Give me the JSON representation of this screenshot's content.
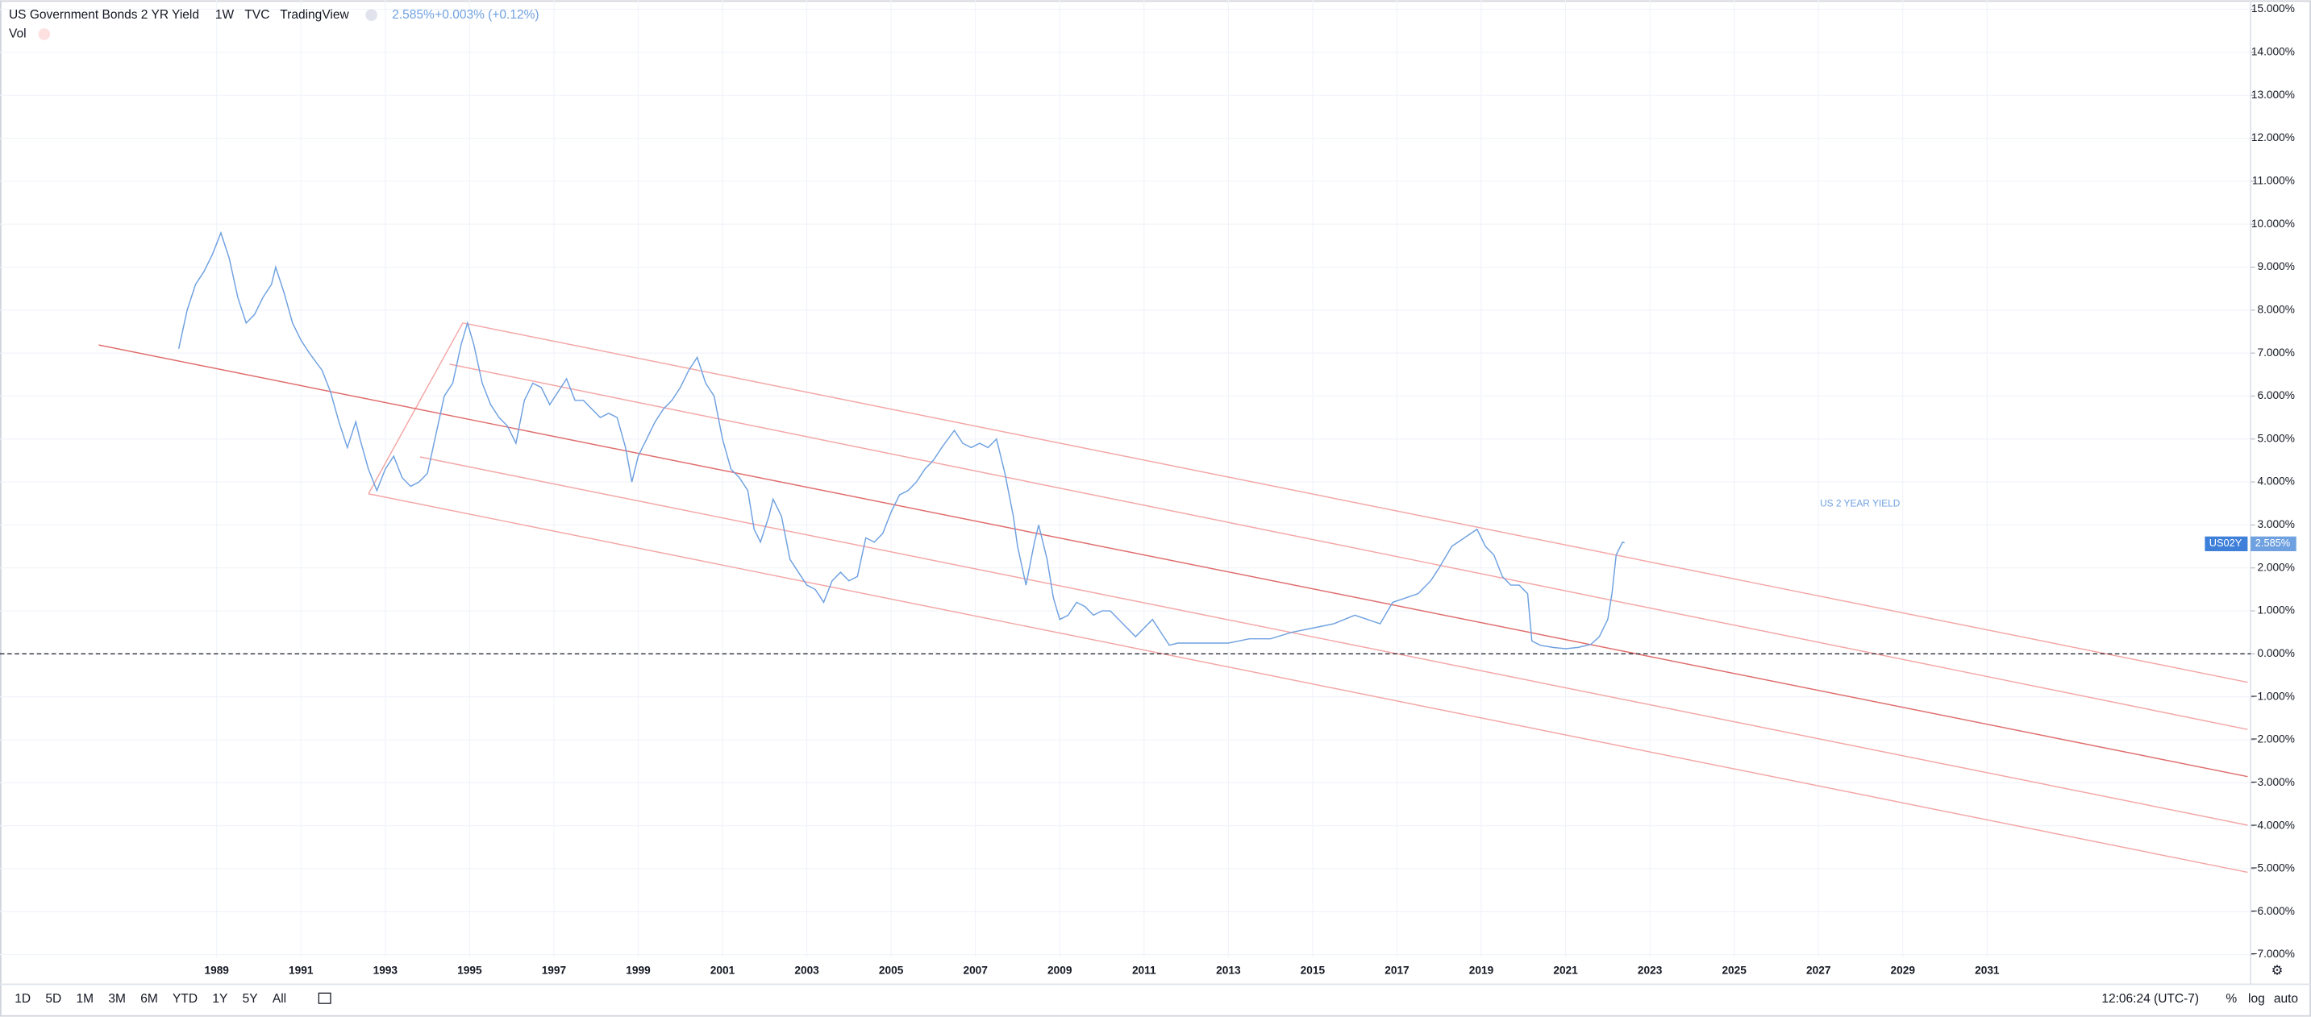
{
  "header": {
    "title": "US Government Bonds 2 YR Yield",
    "interval": "1W",
    "exchange": "TVC",
    "source": "TradingView",
    "price": "2.585%",
    "change": "+0.003% (+0.12%)",
    "volume": "Vol"
  },
  "price_tag": {
    "symbol": "US02Y",
    "value": "2.585%"
  },
  "toolbar": {
    "ranges": [
      "1D",
      "5D",
      "1M",
      "3M",
      "6M",
      "YTD",
      "1Y",
      "5Y",
      "All"
    ],
    "time": "12:06:24 (UTC-7)",
    "options": [
      "%",
      "log",
      "auto"
    ]
  },
  "chart_data": {
    "type": "line",
    "color": "#6fa1e0",
    "annotation": "US 2 YEAR YIELD",
    "grid": true,
    "xlim": [
      1983.86,
      2037.25
    ],
    "ylim": [
      -7.69,
      15.21
    ],
    "xticks": [
      1989,
      1991,
      1993,
      1995,
      1997,
      1999,
      2001,
      2003,
      2005,
      2007,
      2009,
      2011,
      2013,
      2015,
      2017,
      2019,
      2021,
      2023,
      2025,
      2027,
      2029,
      2031
    ],
    "yticks": [
      {
        "value": -7,
        "label": "−7.000%"
      },
      {
        "value": -6,
        "label": "−6.000%"
      },
      {
        "value": -5,
        "label": "−5.000%"
      },
      {
        "value": -4,
        "label": "−4.000%"
      },
      {
        "value": -3,
        "label": "−3.000%"
      },
      {
        "value": -2,
        "label": "−2.000%"
      },
      {
        "value": -1,
        "label": "−1.000%"
      },
      {
        "value": 0,
        "label": "0.000%"
      },
      {
        "value": 1,
        "label": "1.000%"
      },
      {
        "value": 2,
        "label": "2.000%"
      },
      {
        "value": 3,
        "label": "3.000%"
      },
      {
        "value": 4,
        "label": "4.000%"
      },
      {
        "value": 5,
        "label": "5.000%"
      },
      {
        "value": 6,
        "label": "6.000%"
      },
      {
        "value": 7,
        "label": "7.000%"
      },
      {
        "value": 8,
        "label": "8.000%"
      },
      {
        "value": 9,
        "label": "9.000%"
      },
      {
        "value": 10,
        "label": "10.000%"
      },
      {
        "value": 11,
        "label": "11.000%"
      },
      {
        "value": 12,
        "label": "12.000%"
      },
      {
        "value": 13,
        "label": "13.000%"
      },
      {
        "value": 14,
        "label": "14.000%"
      },
      {
        "value": 15,
        "label": "15.000%"
      }
    ],
    "x": [
      1988.1,
      1988.3,
      1988.5,
      1988.7,
      1988.9,
      1989.1,
      1989.3,
      1989.5,
      1989.7,
      1989.9,
      1990.1,
      1990.3,
      1990.4,
      1990.6,
      1990.8,
      1991.0,
      1991.2,
      1991.5,
      1991.7,
      1991.9,
      1992.1,
      1992.3,
      1992.4,
      1992.6,
      1992.8,
      1993.0,
      1993.2,
      1993.4,
      1993.6,
      1993.8,
      1994.0,
      1994.2,
      1994.4,
      1994.6,
      1994.8,
      1994.95,
      1995.1,
      1995.3,
      1995.5,
      1995.7,
      1995.9,
      1996.1,
      1996.3,
      1996.5,
      1996.7,
      1996.9,
      1997.1,
      1997.3,
      1997.5,
      1997.7,
      1997.9,
      1998.1,
      1998.3,
      1998.5,
      1998.7,
      1998.85,
      1999.0,
      1999.2,
      1999.4,
      1999.6,
      1999.8,
      2000.0,
      2000.2,
      2000.4,
      2000.6,
      2000.8,
      2001.0,
      2001.2,
      2001.4,
      2001.6,
      2001.75,
      2001.9,
      2002.1,
      2002.2,
      2002.4,
      2002.6,
      2002.8,
      2003.0,
      2003.2,
      2003.4,
      2003.6,
      2003.8,
      2004.0,
      2004.2,
      2004.4,
      2004.6,
      2004.8,
      2005.0,
      2005.2,
      2005.4,
      2005.6,
      2005.8,
      2006.0,
      2006.2,
      2006.5,
      2006.7,
      2006.9,
      2007.1,
      2007.3,
      2007.5,
      2007.7,
      2007.9,
      2008.0,
      2008.2,
      2008.4,
      2008.5,
      2008.7,
      2008.85,
      2009.0,
      2009.2,
      2009.4,
      2009.6,
      2009.8,
      2010.0,
      2010.2,
      2010.4,
      2010.6,
      2010.8,
      2011.0,
      2011.2,
      2011.4,
      2011.6,
      2011.8,
      2012.0,
      2012.5,
      2013.0,
      2013.5,
      2014.0,
      2014.5,
      2015.0,
      2015.5,
      2016.0,
      2016.3,
      2016.6,
      2016.9,
      2017.2,
      2017.5,
      2017.8,
      2018.0,
      2018.3,
      2018.6,
      2018.9,
      2019.1,
      2019.3,
      2019.5,
      2019.7,
      2019.9,
      2020.1,
      2020.2,
      2020.4,
      2020.7,
      2021.0,
      2021.3,
      2021.6,
      2021.8,
      2022.0,
      2022.1,
      2022.2,
      2022.35,
      2022.4
    ],
    "values": [
      7.1,
      8.0,
      8.6,
      8.9,
      9.3,
      9.8,
      9.2,
      8.3,
      7.7,
      7.9,
      8.3,
      8.6,
      9.0,
      8.4,
      7.7,
      7.3,
      7.0,
      6.6,
      6.1,
      5.4,
      4.8,
      5.4,
      5.0,
      4.3,
      3.8,
      4.3,
      4.6,
      4.1,
      3.9,
      4.0,
      4.2,
      5.1,
      6.0,
      6.3,
      7.2,
      7.7,
      7.2,
      6.3,
      5.8,
      5.5,
      5.3,
      4.9,
      5.9,
      6.3,
      6.2,
      5.8,
      6.1,
      6.4,
      5.9,
      5.9,
      5.7,
      5.5,
      5.6,
      5.5,
      4.8,
      4.0,
      4.6,
      5.0,
      5.4,
      5.7,
      5.9,
      6.2,
      6.6,
      6.9,
      6.3,
      6.0,
      5.0,
      4.3,
      4.1,
      3.8,
      2.9,
      2.6,
      3.2,
      3.6,
      3.2,
      2.2,
      1.9,
      1.6,
      1.5,
      1.2,
      1.7,
      1.9,
      1.7,
      1.8,
      2.7,
      2.6,
      2.8,
      3.3,
      3.7,
      3.8,
      4.0,
      4.3,
      4.5,
      4.8,
      5.2,
      4.9,
      4.8,
      4.9,
      4.8,
      5.0,
      4.2,
      3.2,
      2.5,
      1.6,
      2.6,
      3.0,
      2.2,
      1.3,
      0.8,
      0.9,
      1.2,
      1.1,
      0.9,
      1.0,
      1.0,
      0.8,
      0.6,
      0.4,
      0.6,
      0.8,
      0.5,
      0.2,
      0.25,
      0.25,
      0.25,
      0.25,
      0.35,
      0.35,
      0.5,
      0.6,
      0.7,
      0.9,
      0.8,
      0.7,
      1.2,
      1.3,
      1.4,
      1.7,
      2.0,
      2.5,
      2.7,
      2.9,
      2.5,
      2.3,
      1.8,
      1.6,
      1.6,
      1.4,
      0.3,
      0.2,
      0.15,
      0.12,
      0.15,
      0.22,
      0.4,
      0.8,
      1.4,
      2.3,
      2.6,
      2.585
    ]
  }
}
